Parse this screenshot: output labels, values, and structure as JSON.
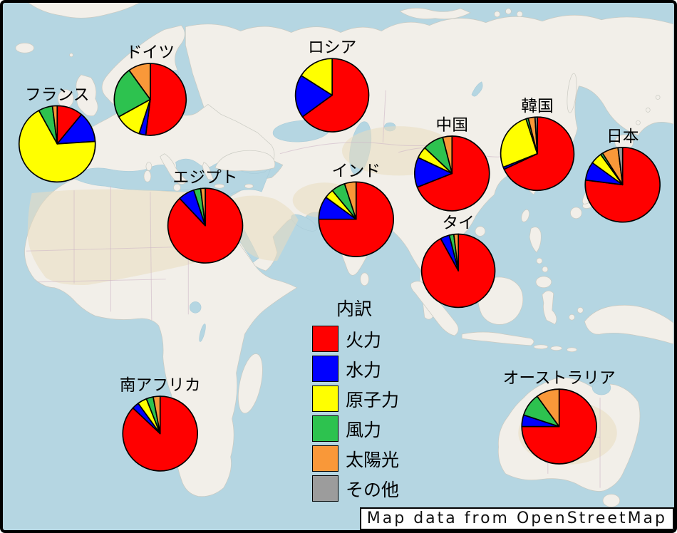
{
  "page": {
    "attribution": "Map data from OpenStreetMap"
  },
  "legend": {
    "title": "内訳",
    "items": [
      {
        "label": "火力",
        "color": "#ff0000"
      },
      {
        "label": "水力",
        "color": "#0000ff"
      },
      {
        "label": "原子力",
        "color": "#ffff00"
      },
      {
        "label": "風力",
        "color": "#2dc24f"
      },
      {
        "label": "太陽光",
        "color": "#f99839"
      },
      {
        "label": "その他",
        "color": "#9c9c9c"
      }
    ]
  },
  "chart_data": {
    "type": "pie",
    "legend_title": "内訳",
    "categories": [
      "火力",
      "水力",
      "原子力",
      "風力",
      "太陽光",
      "その他"
    ],
    "category_ids": [
      "thermal",
      "hydro",
      "nuclear",
      "wind",
      "solar",
      "other"
    ],
    "colors": [
      "#ff0000",
      "#0000ff",
      "#ffff00",
      "#2dc24f",
      "#f99839",
      "#9c9c9c"
    ],
    "unit": "percent",
    "series": [
      {
        "id": "france",
        "name": "フランス",
        "values": [
          11,
          13,
          68,
          6,
          2,
          0
        ],
        "cx": 76,
        "cy": 200,
        "r": 54
      },
      {
        "id": "germany",
        "name": "ドイツ",
        "values": [
          52,
          3,
          12,
          23,
          10,
          0
        ],
        "cx": 208,
        "cy": 137,
        "r": 51
      },
      {
        "id": "russia",
        "name": "ロシア",
        "values": [
          65,
          19,
          16,
          0,
          0,
          0
        ],
        "cx": 466,
        "cy": 131,
        "r": 52
      },
      {
        "id": "egypt",
        "name": "エジプト",
        "values": [
          88,
          7,
          0,
          3,
          2,
          0
        ],
        "cx": 286,
        "cy": 316,
        "r": 53
      },
      {
        "id": "india",
        "name": "インド",
        "values": [
          75,
          10,
          4,
          6,
          5,
          0
        ],
        "cx": 500,
        "cy": 307,
        "r": 53
      },
      {
        "id": "china",
        "name": "中国",
        "values": [
          69,
          13,
          5,
          9,
          4,
          0
        ],
        "cx": 636,
        "cy": 242,
        "r": 53
      },
      {
        "id": "thailand",
        "name": "タイ",
        "values": [
          92,
          4,
          0,
          2,
          2,
          0
        ],
        "cx": 645,
        "cy": 380,
        "r": 52
      },
      {
        "id": "south-korea",
        "name": "韓国",
        "values": [
          68,
          1,
          26,
          1,
          3,
          1
        ],
        "cx": 757,
        "cy": 214,
        "r": 52
      },
      {
        "id": "japan",
        "name": "日本",
        "values": [
          77,
          8,
          5,
          1,
          7,
          2
        ],
        "cx": 878,
        "cy": 258,
        "r": 53
      },
      {
        "id": "south-africa",
        "name": "南アフリカ",
        "values": [
          87,
          3,
          4,
          3,
          3,
          0
        ],
        "cx": 222,
        "cy": 611,
        "r": 53
      },
      {
        "id": "australia",
        "name": "オーストラリア",
        "values": [
          75,
          5,
          0,
          10,
          10,
          0
        ],
        "cx": 788,
        "cy": 601,
        "r": 53
      }
    ]
  },
  "map_colors": {
    "ocean": "#b5d6e2",
    "land": "#f2efe9"
  }
}
